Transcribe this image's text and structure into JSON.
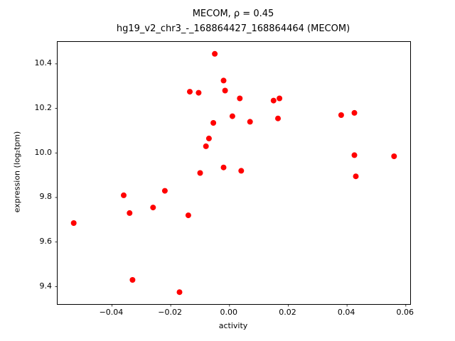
{
  "chart_data": {
    "type": "scatter",
    "title": "MECOM, ρ = 0.45",
    "subtitle": "hg19_v2_chr3_-_168864427_168864464 (MECOM)",
    "xlabel": "activity",
    "ylabel": "expression (log₂tpm)",
    "point_color": "#ff0000",
    "marker_radius": 4,
    "grid": false,
    "legend": "none",
    "xlim": [
      -0.0585,
      0.0615
    ],
    "ylim": [
      9.3215,
      10.4985
    ],
    "xticks": [
      {
        "value": -0.04,
        "label": "−0.04"
      },
      {
        "value": -0.02,
        "label": "−0.02"
      },
      {
        "value": 0.0,
        "label": "0.00"
      },
      {
        "value": 0.02,
        "label": "0.02"
      },
      {
        "value": 0.04,
        "label": "0.04"
      },
      {
        "value": 0.06,
        "label": "0.06"
      }
    ],
    "yticks": [
      {
        "value": 9.4,
        "label": "9.4"
      },
      {
        "value": 9.6,
        "label": "9.6"
      },
      {
        "value": 9.8,
        "label": "9.8"
      },
      {
        "value": 10.0,
        "label": "10.0"
      },
      {
        "value": 10.2,
        "label": "10.2"
      },
      {
        "value": 10.4,
        "label": "10.4"
      }
    ],
    "points": [
      [
        -0.053,
        9.685
      ],
      [
        -0.036,
        9.81
      ],
      [
        -0.034,
        9.73
      ],
      [
        -0.033,
        9.43
      ],
      [
        -0.026,
        9.755
      ],
      [
        -0.022,
        9.83
      ],
      [
        -0.017,
        9.375
      ],
      [
        -0.014,
        9.72
      ],
      [
        -0.0135,
        10.275
      ],
      [
        -0.0105,
        10.27
      ],
      [
        -0.01,
        9.91
      ],
      [
        -0.008,
        10.03
      ],
      [
        -0.007,
        10.065
      ],
      [
        -0.0055,
        10.135
      ],
      [
        -0.005,
        10.445
      ],
      [
        -0.002,
        10.325
      ],
      [
        -0.0015,
        10.28
      ],
      [
        -0.002,
        9.935
      ],
      [
        0.001,
        10.165
      ],
      [
        0.0035,
        10.245
      ],
      [
        0.004,
        9.92
      ],
      [
        0.007,
        10.14
      ],
      [
        0.015,
        10.235
      ],
      [
        0.017,
        10.245
      ],
      [
        0.0165,
        10.155
      ],
      [
        0.038,
        10.17
      ],
      [
        0.0425,
        10.18
      ],
      [
        0.0425,
        9.99
      ],
      [
        0.043,
        9.895
      ],
      [
        0.056,
        9.985
      ]
    ]
  }
}
